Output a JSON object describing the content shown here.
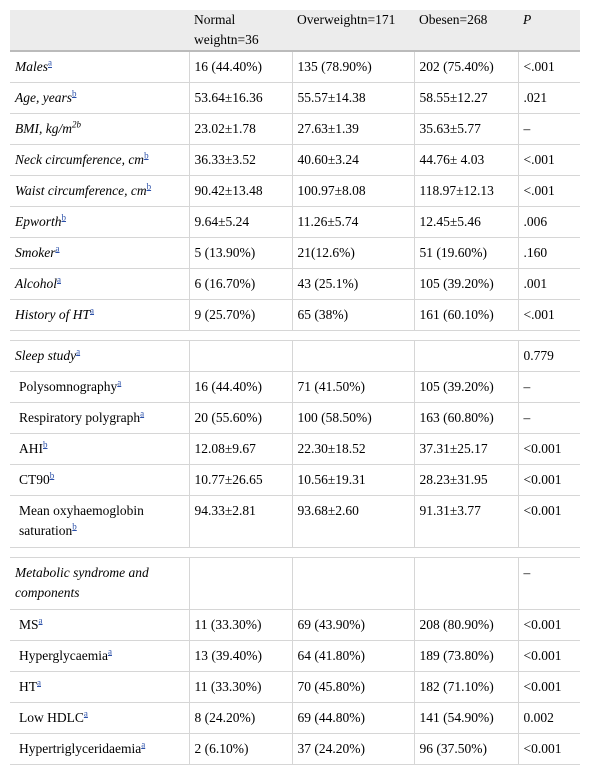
{
  "header": {
    "columns": [
      "Normal weightn=36",
      "Overweightn=171",
      "Obesen=268",
      "P"
    ]
  },
  "groups": [
    {
      "rows": [
        {
          "label": "Males",
          "note": "a",
          "italic": true,
          "cells": [
            "16 (44.40%)",
            "135 (78.90%)",
            "202 (75.40%)",
            "<.001"
          ]
        },
        {
          "label": "Age, years",
          "note": "b",
          "italic": true,
          "cells": [
            "53.64±16.36",
            "55.57±14.38",
            "58.55±12.27",
            ".021"
          ]
        },
        {
          "label": "BMI, kg/m",
          "sup": "2b",
          "italic": true,
          "cells": [
            "23.02±1.78",
            "27.63±1.39",
            "35.63±5.77",
            "–"
          ]
        },
        {
          "label": "Neck circumference, cm",
          "note": "b",
          "italic": true,
          "cells": [
            "36.33±3.52",
            "40.60±3.24",
            "44.76± 4.03",
            "<.001"
          ]
        },
        {
          "label": "Waist circumference, cm",
          "note": "b",
          "italic": true,
          "cells": [
            "90.42±13.48",
            "100.97±8.08",
            "118.97±12.13",
            "<.001"
          ]
        },
        {
          "label": "Epworth",
          "note": "b",
          "italic": true,
          "cells": [
            "9.64±5.24",
            "11.26±5.74",
            "12.45±5.46",
            ".006"
          ]
        },
        {
          "label": "Smoker",
          "note": "a",
          "italic": true,
          "cells": [
            "5 (13.90%)",
            "21(12.6%)",
            "51 (19.60%)",
            ".160"
          ]
        },
        {
          "label": "Alcohol",
          "note": "a",
          "italic": true,
          "cells": [
            "6 (16.70%)",
            "43 (25.1%)",
            "105 (39.20%)",
            ".001"
          ]
        },
        {
          "label": "History of HT",
          "note": "a",
          "italic": true,
          "cells": [
            "9 (25.70%)",
            "65 (38%)",
            "161 (60.10%)",
            "<.001"
          ]
        }
      ]
    },
    {
      "heading": {
        "label": "Sleep study",
        "note": "a",
        "italic": true,
        "p": "0.779"
      },
      "rows": [
        {
          "label": "Polysomnography",
          "note": "a",
          "cells": [
            "16 (44.40%)",
            "71 (41.50%)",
            "105 (39.20%)",
            "–"
          ]
        },
        {
          "label": "Respiratory polygraph",
          "note": "a",
          "cells": [
            "20 (55.60%)",
            "100 (58.50%)",
            "163 (60.80%)",
            "–"
          ]
        },
        {
          "label": "AHI",
          "note": "b",
          "cells": [
            "12.08±9.67",
            "22.30±18.52",
            "37.31±25.17",
            "<0.001"
          ]
        },
        {
          "label": "CT90",
          "note": "b",
          "cells": [
            "10.77±26.65",
            "10.56±19.31",
            "28.23±31.95",
            "<0.001"
          ]
        },
        {
          "label": "Mean oxyhaemoglobin saturation",
          "note": "b",
          "cells": [
            "94.33±2.81",
            "93.68±2.60",
            "91.31±3.77",
            "<0.001"
          ]
        }
      ]
    },
    {
      "heading": {
        "label": "Metabolic syndrome and components",
        "italic": true,
        "p": "–"
      },
      "rows": [
        {
          "label": "MS",
          "note": "a",
          "cells": [
            "11 (33.30%)",
            "69 (43.90%)",
            "208 (80.90%)",
            "<0.001"
          ]
        },
        {
          "label": "Hyperglycaemia",
          "note": "a",
          "cells": [
            "13 (39.40%)",
            "64 (41.80%)",
            "189 (73.80%)",
            "<0.001"
          ]
        },
        {
          "label": "HT",
          "note": "a",
          "cells": [
            "11 (33.30%)",
            "70 (45.80%)",
            "182 (71.10%)",
            "<0.001"
          ]
        },
        {
          "label": "Low HDLC",
          "note": "a",
          "cells": [
            "8 (24.20%)",
            "69 (44.80%)",
            "141 (54.90%)",
            "0.002"
          ]
        },
        {
          "label": "Hypertriglyceridaemia",
          "note": "a",
          "cells": [
            "2 (6.10%)",
            "37 (24.20%)",
            "96 (37.50%)",
            "<0.001"
          ]
        }
      ]
    }
  ]
}
